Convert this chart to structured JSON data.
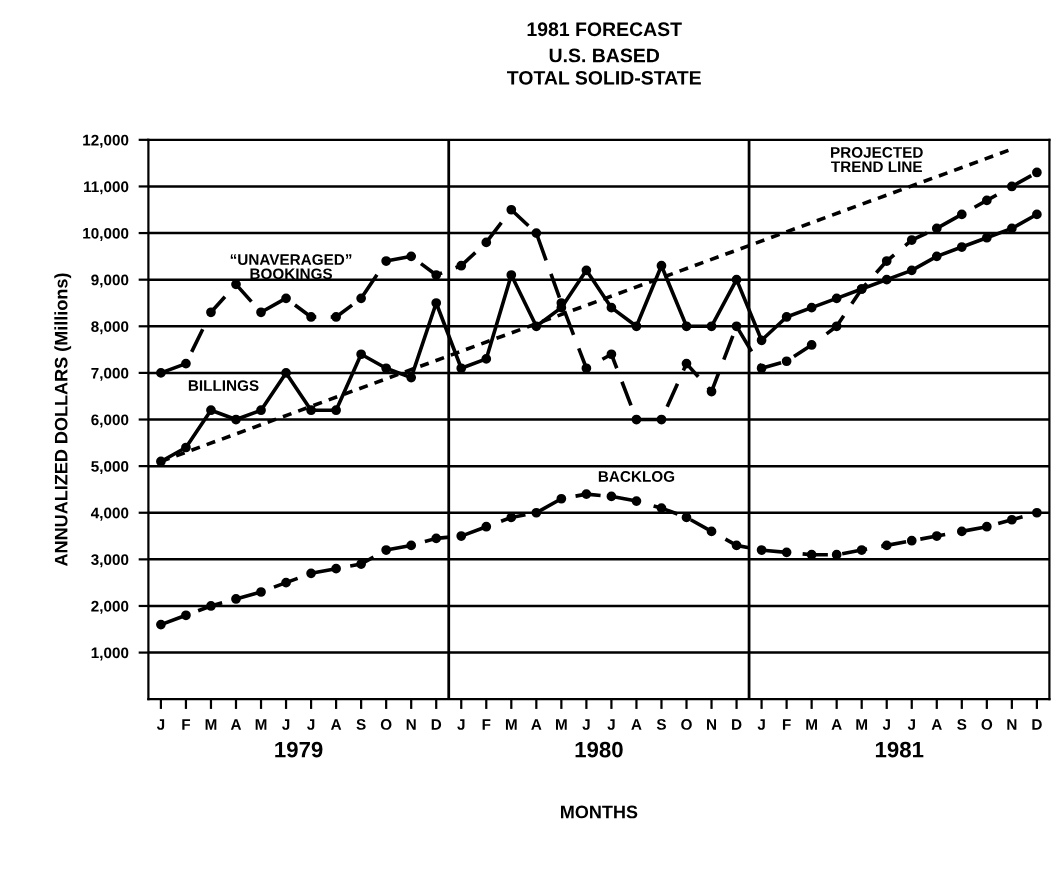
{
  "chart_data": {
    "type": "line",
    "title": "1981 FORECAST",
    "subtitle": "U.S. BASED\nTOTAL SOLID-STATE",
    "xlabel": "MONTHS",
    "ylabel": "ANNUALIZED DOLLARS (Millions)",
    "annotations": [
      "1979",
      "1980",
      "1981"
    ],
    "categories": [
      "J",
      "F",
      "M",
      "A",
      "M",
      "J",
      "J",
      "A",
      "S",
      "O",
      "N",
      "D",
      "J",
      "F",
      "M",
      "A",
      "M",
      "J",
      "J",
      "A",
      "S",
      "O",
      "N",
      "D",
      "J",
      "F",
      "M",
      "A",
      "M",
      "J",
      "J",
      "A",
      "S",
      "O",
      "N",
      "D"
    ],
    "ylim": [
      0,
      12000
    ],
    "yticks": [
      {
        "value": 1000,
        "label": "1,000"
      },
      {
        "value": 2000,
        "label": "2,000"
      },
      {
        "value": 3000,
        "label": "3,000"
      },
      {
        "value": 4000,
        "label": "4,000"
      },
      {
        "value": 5000,
        "label": "5,000"
      },
      {
        "value": 6000,
        "label": "6,000"
      },
      {
        "value": 7000,
        "label": "7,000"
      },
      {
        "value": 8000,
        "label": "8,000"
      },
      {
        "value": 9000,
        "label": "9,000"
      },
      {
        "value": 10000,
        "label": "10,000"
      },
      {
        "value": 11000,
        "label": "11,000"
      },
      {
        "value": 12000,
        "label": "12,000"
      }
    ],
    "grid": "y",
    "legend": false,
    "series": [
      {
        "name": "“UNAVERAGED”\nBOOKINGS",
        "color": "#000000",
        "line_style": "dashed",
        "marker": "circle",
        "values": [
          7000,
          7200,
          8300,
          8900,
          8300,
          8600,
          8200,
          8200,
          8600,
          9400,
          9500,
          9100,
          9300,
          9800,
          10500,
          10000,
          8500,
          7100,
          7400,
          6000,
          6000,
          7200,
          6600,
          8000,
          7100,
          7250,
          7600,
          8000,
          8800,
          9400,
          9850,
          10100,
          10400,
          10700,
          11000,
          11300
        ]
      },
      {
        "name": "BILLINGS",
        "color": "#000000",
        "line_style": "solid",
        "marker": "circle",
        "values": [
          5100,
          5400,
          6200,
          6000,
          6200,
          7000,
          6200,
          6200,
          7400,
          7100,
          6900,
          8500,
          7100,
          7300,
          9100,
          8000,
          8400,
          9200,
          8400,
          8000,
          9300,
          8000,
          8000,
          9000,
          7700,
          8200,
          8400,
          8600,
          8800,
          9000,
          9200,
          9500,
          9700,
          9900,
          10100,
          10400
        ]
      },
      {
        "name": "BACKLOG",
        "color": "#000000",
        "line_style": "dashed",
        "marker": "circle",
        "values": [
          1600,
          1800,
          2000,
          2150,
          2300,
          2500,
          2700,
          2800,
          2900,
          3200,
          3300,
          3450,
          3500,
          3700,
          3900,
          4000,
          4300,
          4400,
          4350,
          4250,
          4100,
          3900,
          3600,
          3300,
          3200,
          3150,
          3100,
          3100,
          3200,
          3300,
          3400,
          3500,
          3600,
          3700,
          3850,
          4000
        ]
      },
      {
        "name": "PROJECTED\nTREND LINE",
        "color": "#000000",
        "line_style": "dotted",
        "marker": "none",
        "values": [
          5100,
          null,
          null,
          null,
          null,
          null,
          null,
          null,
          null,
          null,
          null,
          null,
          null,
          null,
          null,
          null,
          null,
          null,
          null,
          null,
          null,
          null,
          null,
          null,
          null,
          null,
          null,
          null,
          null,
          null,
          null,
          null,
          null,
          null,
          11800,
          null
        ]
      }
    ]
  }
}
